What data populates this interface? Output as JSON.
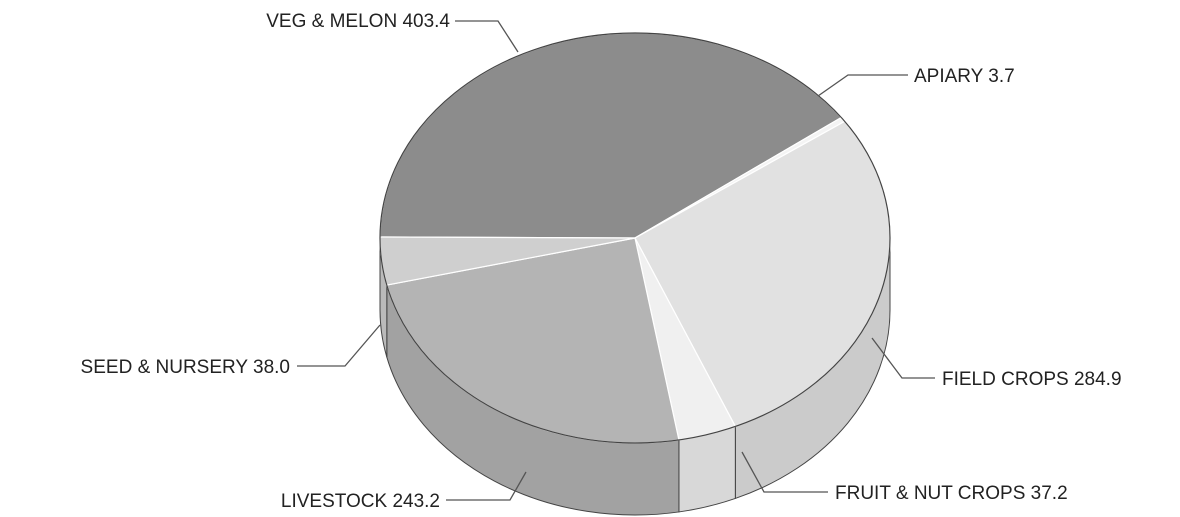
{
  "chart_data": {
    "type": "pie",
    "title": "",
    "legend": "none",
    "slices": [
      {
        "label": "VEG & MELON",
        "value": 403.4,
        "color": "#8c8c8c"
      },
      {
        "label": "APIARY",
        "value": 3.7,
        "color": "#f4f4f4"
      },
      {
        "label": "FIELD CROPS",
        "value": 284.9,
        "color": "#e1e1e1"
      },
      {
        "label": "FRUIT & NUT CROPS",
        "value": 37.2,
        "color": "#f0f0f0"
      },
      {
        "label": "LIVESTOCK",
        "value": 243.2,
        "color": "#b4b4b4"
      },
      {
        "label": "SEED & NURSERY",
        "value": 38.0,
        "color": "#cfcfcf"
      }
    ],
    "labels": [
      {
        "text": "VEG & MELON 403.4"
      },
      {
        "text": "APIARY 3.7"
      },
      {
        "text": "FIELD CROPS 284.9"
      },
      {
        "text": "FRUIT & NUT CROPS 37.2"
      },
      {
        "text": "LIVESTOCK 243.2"
      },
      {
        "text": "SEED & NURSERY 38.0"
      }
    ]
  }
}
